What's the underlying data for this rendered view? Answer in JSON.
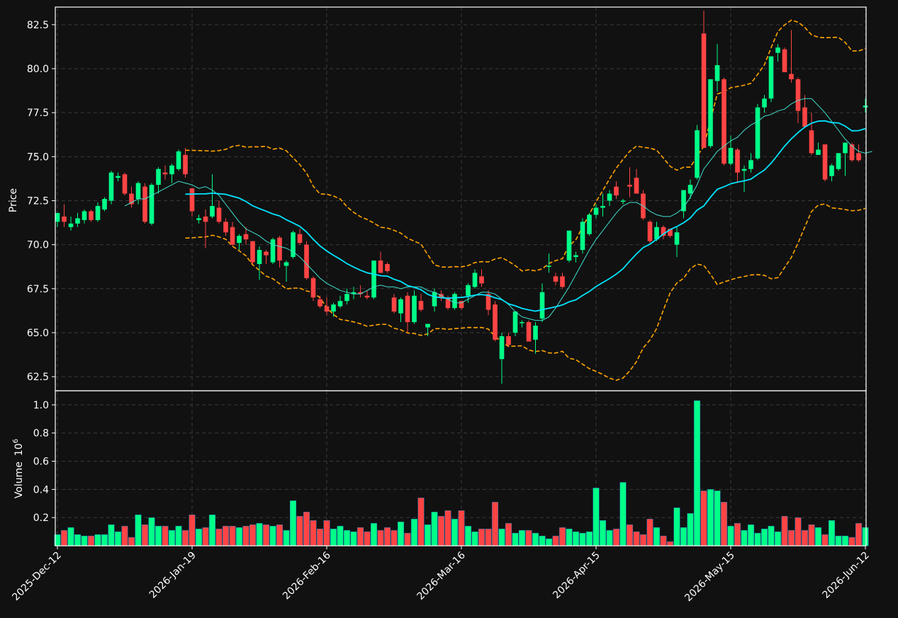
{
  "chart_data": {
    "type": "candlestick",
    "theme": {
      "background": "#111111",
      "up_color": "#00ff88",
      "down_color": "#ff4444",
      "grid": "dashed",
      "ma_short_color": "#40e0d0",
      "ma_long_color": "#00e5ff",
      "bollinger_color": "#ffa500"
    },
    "price_panel": {
      "ylabel": "Price",
      "ylim": [
        61.7,
        83.5
      ],
      "yticks": [
        "62.5",
        "65.0",
        "67.5",
        "70.0",
        "72.5",
        "75.0",
        "77.5",
        "80.0",
        "82.5"
      ]
    },
    "volume_panel": {
      "ylabel": "Volume",
      "ylabel_exponent": "10",
      "ylabel_power": "6",
      "ylim": [
        0,
        1.1
      ],
      "yticks": [
        "0.2",
        "0.4",
        "0.6",
        "0.8",
        "1.0"
      ]
    },
    "xticks": [
      {
        "i": 0,
        "label": "2025-Dec-12"
      },
      {
        "i": 20,
        "label": "2026-Jan-19"
      },
      {
        "i": 40,
        "label": "2026-Feb-16"
      },
      {
        "i": 60,
        "label": "2026-Mar-16"
      },
      {
        "i": 80,
        "label": "2026-Apr-15"
      },
      {
        "i": 100,
        "label": "2026-May-15"
      },
      {
        "i": 120,
        "label": "2026-Jun-12"
      }
    ],
    "ohlcv": [
      [
        71.3,
        71.8,
        71.0,
        71.8,
        0.08
      ],
      [
        71.6,
        72.3,
        71.0,
        71.3,
        0.11
      ],
      [
        71.0,
        71.6,
        70.8,
        71.2,
        0.13
      ],
      [
        71.2,
        71.8,
        71.0,
        71.5,
        0.08
      ],
      [
        71.4,
        72.0,
        71.2,
        71.9,
        0.07
      ],
      [
        71.9,
        72.0,
        71.3,
        71.4,
        0.07
      ],
      [
        71.4,
        72.4,
        71.3,
        72.2,
        0.08
      ],
      [
        72.0,
        72.7,
        71.9,
        72.6,
        0.08
      ],
      [
        72.5,
        74.2,
        72.3,
        74.1,
        0.15
      ],
      [
        73.8,
        74.1,
        73.6,
        73.9,
        0.1
      ],
      [
        74.0,
        74.1,
        72.8,
        72.9,
        0.14
      ],
      [
        72.9,
        73.3,
        72.1,
        72.3,
        0.06
      ],
      [
        72.6,
        73.6,
        72.3,
        73.5,
        0.22
      ],
      [
        73.3,
        73.5,
        71.2,
        71.3,
        0.15
      ],
      [
        71.2,
        73.5,
        71.1,
        73.4,
        0.2
      ],
      [
        73.4,
        74.4,
        72.9,
        74.3,
        0.14
      ],
      [
        74.1,
        74.5,
        73.7,
        74.0,
        0.14
      ],
      [
        74.0,
        74.6,
        73.5,
        74.5,
        0.11
      ],
      [
        74.3,
        75.4,
        74.2,
        75.3,
        0.14
      ],
      [
        75.1,
        75.5,
        73.8,
        74.0,
        0.11
      ],
      [
        73.2,
        73.2,
        71.6,
        71.9,
        0.22
      ],
      [
        71.4,
        71.7,
        71.2,
        71.5,
        0.12
      ],
      [
        71.6,
        72.0,
        69.8,
        71.3,
        0.13
      ],
      [
        71.6,
        74.0,
        71.5,
        72.2,
        0.22
      ],
      [
        72.1,
        72.5,
        71.2,
        71.3,
        0.12
      ],
      [
        71.3,
        71.5,
        70.5,
        70.7,
        0.14
      ],
      [
        71.0,
        71.3,
        69.9,
        70.0,
        0.14
      ],
      [
        70.1,
        70.6,
        69.7,
        70.5,
        0.13
      ],
      [
        70.6,
        71.0,
        70.0,
        70.3,
        0.14
      ],
      [
        70.2,
        70.2,
        68.9,
        69.0,
        0.15
      ],
      [
        68.9,
        69.9,
        68.0,
        69.7,
        0.16
      ],
      [
        69.6,
        69.7,
        68.9,
        69.4,
        0.15
      ],
      [
        69.0,
        70.4,
        68.9,
        70.3,
        0.14
      ],
      [
        70.4,
        70.5,
        68.7,
        69.1,
        0.15
      ],
      [
        68.8,
        69.1,
        67.9,
        69.0,
        0.11
      ],
      [
        69.3,
        70.8,
        69.2,
        70.7,
        0.32
      ],
      [
        70.6,
        70.9,
        70.0,
        70.1,
        0.21
      ],
      [
        70.0,
        70.2,
        68.0,
        68.1,
        0.24
      ],
      [
        68.1,
        68.2,
        66.8,
        67.0,
        0.18
      ],
      [
        66.9,
        67.1,
        66.4,
        66.5,
        0.12
      ],
      [
        66.5,
        67.0,
        66.0,
        66.2,
        0.18
      ],
      [
        66.2,
        66.7,
        65.9,
        66.6,
        0.12
      ],
      [
        66.5,
        67.1,
        66.4,
        66.8,
        0.14
      ],
      [
        66.8,
        67.5,
        66.6,
        67.2,
        0.11
      ],
      [
        67.2,
        67.6,
        66.9,
        67.3,
        0.1
      ],
      [
        67.3,
        67.7,
        67.0,
        67.2,
        0.13
      ],
      [
        67.1,
        67.4,
        66.9,
        67.0,
        0.1
      ],
      [
        67.0,
        69.1,
        66.9,
        69.1,
        0.16
      ],
      [
        69.1,
        69.6,
        68.4,
        68.4,
        0.11
      ],
      [
        68.9,
        69.0,
        68.4,
        68.5,
        0.13
      ],
      [
        67.0,
        67.2,
        66.1,
        66.2,
        0.11
      ],
      [
        66.1,
        67.0,
        65.6,
        66.9,
        0.17
      ],
      [
        67.1,
        67.3,
        65.0,
        65.6,
        0.09
      ],
      [
        65.6,
        67.4,
        65.5,
        67.1,
        0.19
      ],
      [
        66.8,
        67.2,
        66.2,
        66.3,
        0.34
      ],
      [
        65.3,
        65.5,
        64.8,
        65.5,
        0.15
      ],
      [
        66.5,
        67.5,
        66.2,
        67.3,
        0.24
      ],
      [
        67.2,
        67.4,
        66.8,
        67.0,
        0.21
      ],
      [
        67.0,
        67.1,
        66.3,
        66.4,
        0.25
      ],
      [
        66.4,
        67.3,
        66.3,
        67.2,
        0.19
      ],
      [
        66.8,
        66.8,
        66.3,
        66.4,
        0.25
      ],
      [
        67.1,
        67.8,
        66.7,
        67.7,
        0.14
      ],
      [
        67.6,
        68.6,
        67.5,
        68.4,
        0.1
      ],
      [
        68.2,
        68.6,
        67.6,
        67.8,
        0.12
      ],
      [
        67.2,
        67.4,
        66.0,
        66.3,
        0.12
      ],
      [
        66.6,
        66.8,
        64.5,
        64.6,
        0.31
      ],
      [
        63.5,
        65.0,
        62.1,
        64.8,
        0.12
      ],
      [
        64.8,
        65.0,
        64.2,
        64.3,
        0.16
      ],
      [
        65.0,
        66.2,
        64.8,
        66.2,
        0.09
      ],
      [
        65.6,
        65.7,
        65.3,
        65.6,
        0.11
      ],
      [
        65.6,
        65.7,
        64.5,
        64.5,
        0.11
      ],
      [
        64.6,
        65.6,
        63.8,
        65.4,
        0.09
      ],
      [
        65.8,
        67.8,
        65.6,
        67.3,
        0.07
      ],
      [
        68.8,
        69.5,
        68.4,
        68.8,
        0.05
      ],
      [
        68.2,
        68.4,
        67.7,
        67.9,
        0.07
      ],
      [
        68.2,
        68.4,
        67.5,
        67.6,
        0.13
      ],
      [
        69.1,
        70.8,
        69.0,
        70.8,
        0.12
      ],
      [
        69.3,
        69.6,
        69.0,
        69.4,
        0.1
      ],
      [
        69.7,
        71.5,
        69.5,
        71.3,
        0.09
      ],
      [
        70.6,
        71.8,
        70.5,
        71.7,
        0.1
      ],
      [
        71.7,
        72.3,
        71.5,
        72.1,
        0.41
      ],
      [
        72.1,
        72.9,
        71.6,
        72.2,
        0.18
      ],
      [
        72.5,
        73.1,
        72.2,
        72.9,
        0.11
      ],
      [
        73.3,
        73.6,
        72.6,
        72.8,
        0.12
      ],
      [
        72.5,
        72.6,
        72.3,
        72.5,
        0.45
      ],
      [
        73.4,
        74.4,
        72.7,
        73.3,
        0.15
      ],
      [
        73.8,
        74.3,
        72.9,
        72.9,
        0.1
      ],
      [
        72.9,
        73.1,
        71.4,
        71.5,
        0.08
      ],
      [
        71.3,
        71.4,
        70.1,
        70.2,
        0.19
      ],
      [
        70.3,
        71.3,
        70.2,
        71.0,
        0.13
      ],
      [
        71.0,
        71.1,
        70.3,
        70.5,
        0.07
      ],
      [
        70.9,
        70.9,
        70.4,
        70.5,
        0.03
      ],
      [
        70.0,
        71.0,
        69.3,
        70.7,
        0.27
      ],
      [
        71.9,
        73.1,
        71.5,
        73.1,
        0.13
      ],
      [
        72.9,
        73.7,
        72.6,
        73.4,
        0.23
      ],
      [
        73.8,
        76.8,
        73.7,
        76.5,
        1.03
      ],
      [
        82.0,
        83.3,
        75.5,
        75.5,
        0.39
      ],
      [
        75.6,
        79.4,
        75.5,
        79.4,
        0.4
      ],
      [
        79.3,
        81.4,
        78.7,
        80.2,
        0.39
      ],
      [
        79.4,
        79.5,
        74.5,
        74.6,
        0.31
      ],
      [
        74.6,
        76.2,
        74.5,
        75.5,
        0.14
      ],
      [
        75.4,
        75.5,
        73.5,
        74.1,
        0.16
      ],
      [
        74.2,
        74.5,
        73.0,
        74.3,
        0.11
      ],
      [
        74.3,
        75.2,
        74.1,
        74.8,
        0.15
      ],
      [
        74.9,
        78.0,
        74.8,
        77.8,
        0.09
      ],
      [
        77.8,
        78.5,
        77.5,
        78.3,
        0.12
      ],
      [
        78.3,
        80.7,
        78.1,
        80.7,
        0.14
      ],
      [
        80.9,
        81.4,
        80.4,
        81.2,
        0.1
      ],
      [
        81.1,
        81.2,
        79.8,
        79.8,
        0.21
      ],
      [
        79.7,
        82.2,
        79.2,
        79.4,
        0.11
      ],
      [
        79.4,
        79.5,
        76.9,
        77.6,
        0.2
      ],
      [
        77.8,
        78.5,
        76.8,
        76.7,
        0.11
      ],
      [
        76.5,
        77.5,
        75.1,
        75.2,
        0.15
      ],
      [
        75.1,
        75.8,
        75.2,
        75.4,
        0.13
      ],
      [
        75.7,
        75.7,
        73.6,
        73.7,
        0.08
      ],
      [
        73.9,
        74.6,
        73.6,
        74.5,
        0.18
      ],
      [
        74.3,
        75.2,
        74.2,
        75.2,
        0.07
      ],
      [
        75.2,
        75.8,
        73.9,
        75.8,
        0.07
      ],
      [
        75.7,
        75.8,
        74.7,
        74.8,
        0.06
      ],
      [
        75.2,
        75.7,
        74.7,
        74.8,
        0.16
      ],
      [
        77.8,
        78.3,
        77.5,
        77.9,
        0.13
      ]
    ],
    "ma_short": [
      null,
      null,
      null,
      null,
      null,
      null,
      null,
      null,
      null,
      null,
      72.2,
      72.4,
      72.6,
      72.6,
      72.8,
      73.0,
      73.2,
      73.4,
      73.6,
      73.5,
      73.4,
      73.2,
      73.3,
      73.1,
      72.8,
      72.3,
      71.8,
      71.3,
      70.9,
      70.7,
      70.5,
      70.2,
      70.0,
      69.9,
      69.8,
      69.6,
      69.3,
      68.9,
      68.5,
      68.1,
      67.8,
      67.6,
      67.4,
      67.3,
      67.2,
      67.2,
      67.4,
      67.6,
      67.7,
      67.6,
      67.6,
      67.5,
      67.6,
      67.6,
      67.6,
      67.4,
      67.3,
      67.1,
      66.9,
      66.7,
      66.7,
      66.9,
      67.1,
      67.3,
      67.3,
      67.2,
      66.9,
      66.6,
      66.2,
      65.9,
      65.8,
      65.7,
      65.7,
      65.9,
      66.4,
      67.0,
      67.6,
      68.3,
      69.0,
      69.7,
      70.3,
      70.8,
      71.3,
      71.8,
      72.2,
      72.4,
      72.4,
      72.2,
      71.9,
      71.7,
      71.6,
      71.6,
      71.8,
      72.1,
      72.7,
      73.4,
      74.3,
      74.8,
      75.3,
      75.6,
      75.9,
      76.1,
      76.5,
      76.8,
      77.0,
      77.3,
      77.4,
      77.6,
      77.7,
      78.0,
      78.2,
      78.3,
      78.3,
      77.9,
      77.5,
      77.0,
      76.5,
      76.0,
      75.6,
      75.3,
      75.2,
      75.3
    ]
  }
}
